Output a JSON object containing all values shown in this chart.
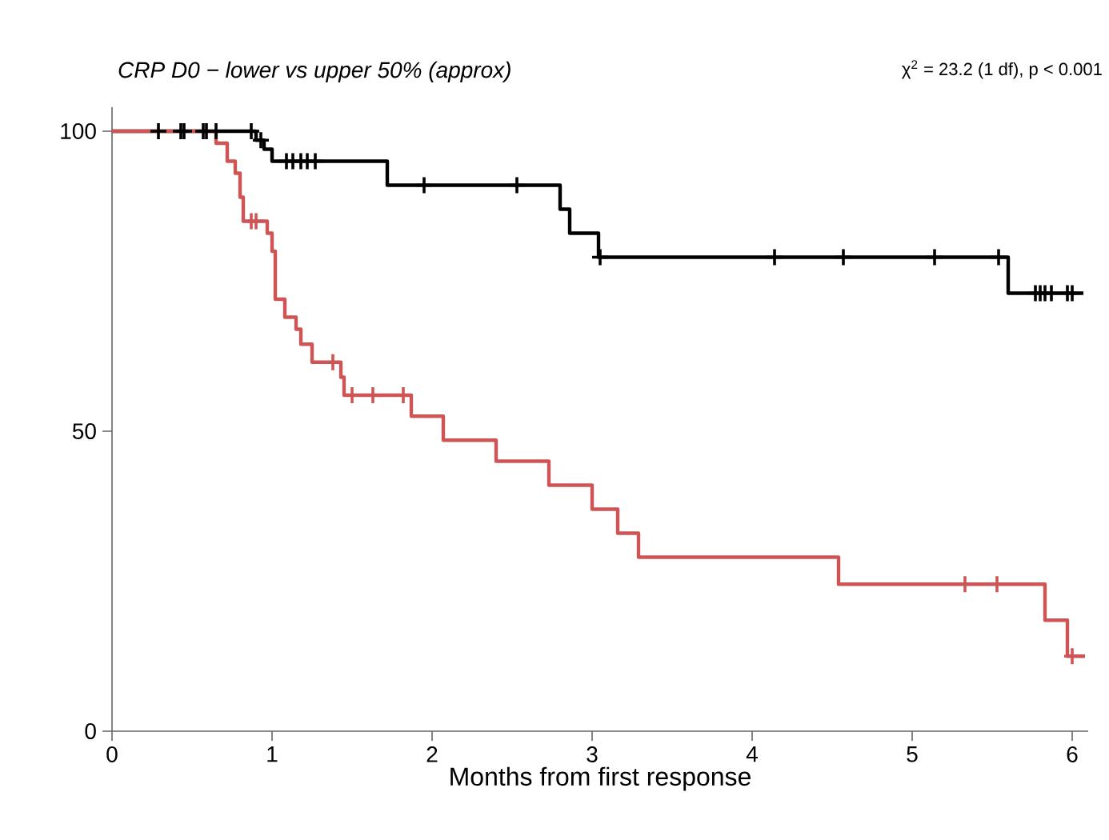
{
  "chart_data": {
    "type": "step",
    "title": "*CRP D0 − lower vs upper 50% (approx)*",
    "xlabel": "Months from first response",
    "annotations": [
      "χ$^{2}$ = 23.2 (1 df), p < 0.001"
    ],
    "xlim": [
      0,
      6.1
    ],
    "ylim": [
      0,
      104
    ],
    "xticks": [
      0,
      1,
      2,
      3,
      4,
      5,
      6
    ],
    "yticks": [
      0,
      50,
      100
    ],
    "grid": false,
    "marker": "none",
    "line_style": "solid",
    "series": [
      {
        "color": "#000000",
        "x": [
          0,
          0.9,
          0.95,
          1.0,
          1.72,
          2.8,
          2.86,
          3.04,
          5.6,
          6.07
        ],
        "values": [
          100,
          98.5,
          97,
          95,
          91,
          87,
          83,
          79,
          73,
          73
        ]
      },
      {
        "type": "scatter",
        "marker": "cross",
        "color": "#000000",
        "x": [
          0.29,
          0.43,
          0.45,
          0.57,
          0.59,
          0.65,
          0.87,
          0.93,
          1.09,
          1.13,
          1.18,
          1.22,
          1.27,
          1.95,
          2.53,
          3.05,
          4.14,
          4.57,
          5.14,
          5.54,
          5.77,
          5.8,
          5.83,
          5.87,
          5.97,
          6.0
        ],
        "values": [
          100,
          100,
          100,
          100,
          100,
          100,
          100,
          98.5,
          95,
          95,
          95,
          95,
          95,
          91,
          91,
          79,
          79,
          79,
          79,
          79,
          73,
          73,
          73,
          73,
          73,
          73
        ]
      },
      {
        "color": "#cd5555",
        "x": [
          0,
          0.65,
          0.72,
          0.77,
          0.8,
          0.82,
          0.97,
          1.0,
          1.02,
          1.08,
          1.15,
          1.18,
          1.25,
          1.43,
          1.45,
          1.87,
          2.07,
          2.4,
          2.73,
          3.0,
          3.16,
          3.29,
          4.54,
          5.83,
          5.97,
          6.08
        ],
        "values": [
          100,
          98,
          95,
          93,
          89,
          85,
          83,
          80,
          72,
          69,
          67,
          64.5,
          61.5,
          59,
          56,
          52.5,
          48.5,
          45,
          41,
          37,
          33,
          29,
          24.5,
          18.5,
          12.5,
          12.5
        ]
      },
      {
        "type": "scatter",
        "marker": "cross",
        "color": "#cd5555",
        "x": [
          0.87,
          0.9,
          1.38,
          1.5,
          1.63,
          1.82,
          5.33,
          5.53,
          6.0
        ],
        "values": [
          85,
          85,
          61.5,
          56,
          56,
          56,
          24.5,
          24.5,
          12.5
        ]
      }
    ]
  }
}
